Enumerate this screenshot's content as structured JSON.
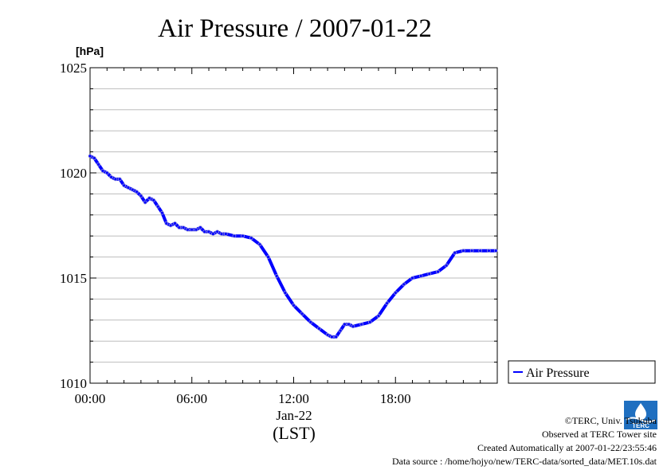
{
  "chart_data": {
    "type": "line",
    "title": "Air Pressure / 2007-01-22",
    "ylabel": "[hPa]",
    "xlabel": "(LST)",
    "x_date_label": "Jan-22",
    "ylim": [
      1010,
      1025
    ],
    "xlim": [
      "00:00",
      "24:00"
    ],
    "yticks": [
      "1010",
      "1015",
      "1020",
      "1025"
    ],
    "xticks": [
      "00:00",
      "06:00",
      "12:00",
      "18:00"
    ],
    "grid": true,
    "legend": {
      "placement": "right",
      "entries": [
        "Air Pressure"
      ]
    },
    "series": [
      {
        "name": "Air Pressure",
        "color": "#0000ff",
        "x": [
          "00:00",
          "00:15",
          "00:30",
          "00:45",
          "01:00",
          "01:15",
          "01:30",
          "01:45",
          "02:00",
          "02:15",
          "02:30",
          "02:45",
          "03:00",
          "03:15",
          "03:30",
          "03:45",
          "04:00",
          "04:15",
          "04:30",
          "04:45",
          "05:00",
          "05:15",
          "05:30",
          "05:45",
          "06:00",
          "06:15",
          "06:30",
          "06:45",
          "07:00",
          "07:15",
          "07:30",
          "07:45",
          "08:00",
          "08:30",
          "09:00",
          "09:30",
          "10:00",
          "10:30",
          "11:00",
          "11:30",
          "12:00",
          "12:30",
          "13:00",
          "13:30",
          "14:00",
          "14:15",
          "14:30",
          "14:45",
          "15:00",
          "15:15",
          "15:30",
          "16:00",
          "16:30",
          "17:00",
          "17:30",
          "18:00",
          "18:30",
          "19:00",
          "19:30",
          "20:00",
          "20:30",
          "21:00",
          "21:30",
          "22:00",
          "22:30",
          "23:00",
          "23:30",
          "23:55"
        ],
        "values": [
          1020.8,
          1020.7,
          1020.4,
          1020.1,
          1020.0,
          1019.8,
          1019.7,
          1019.7,
          1019.4,
          1019.3,
          1019.2,
          1019.1,
          1018.9,
          1018.6,
          1018.8,
          1018.7,
          1018.4,
          1018.1,
          1017.6,
          1017.5,
          1017.6,
          1017.4,
          1017.4,
          1017.3,
          1017.3,
          1017.3,
          1017.4,
          1017.2,
          1017.2,
          1017.1,
          1017.2,
          1017.1,
          1017.1,
          1017.0,
          1017.0,
          1016.9,
          1016.6,
          1016.0,
          1015.1,
          1014.3,
          1013.7,
          1013.3,
          1012.9,
          1012.6,
          1012.3,
          1012.2,
          1012.2,
          1012.5,
          1012.8,
          1012.8,
          1012.7,
          1012.8,
          1012.9,
          1013.2,
          1013.8,
          1014.3,
          1014.7,
          1015.0,
          1015.1,
          1015.2,
          1015.3,
          1015.6,
          1016.2,
          1016.3,
          1016.3,
          1016.3,
          1016.3,
          1016.3
        ]
      }
    ]
  },
  "credits": {
    "copyright": "©TERC, Univ. Tsukuba",
    "site": "Observed at TERC Tower site",
    "created": "Created Automatically at 2007-01-22/23:55:46",
    "source": "Data source : /home/hojyo/new/TERC-data/sorted_data/MET.10s.dat",
    "logo_text": "TERC"
  }
}
